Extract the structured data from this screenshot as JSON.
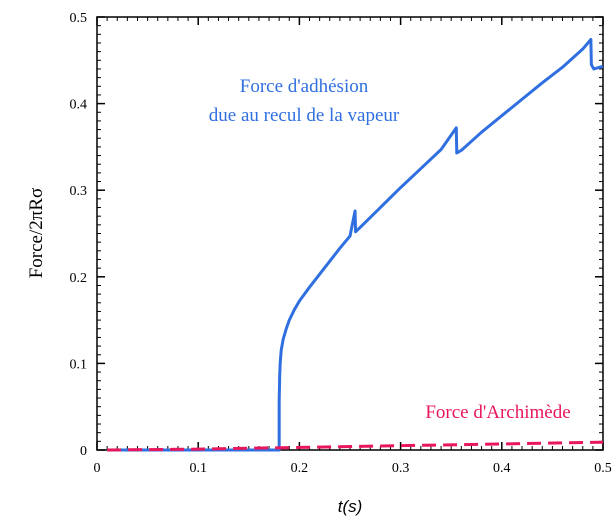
{
  "chart_data": {
    "type": "line",
    "xlabel": "t(s)",
    "ylabel": "Force/2πRσ",
    "xlim": [
      0,
      0.5
    ],
    "ylim": [
      0,
      0.5
    ],
    "xticks": [
      "0",
      "0.1",
      "0.2",
      "0.3",
      "0.4",
      "0.5"
    ],
    "yticks": [
      "0",
      "0.1",
      "0.2",
      "0.3",
      "0.4",
      "0.5"
    ],
    "grid": false,
    "series": [
      {
        "name": "",
        "color": "#2f6fe0",
        "style": "solid",
        "x": [
          0.01,
          0.18,
          0.18,
          0.1805,
          0.181,
          0.182,
          0.184,
          0.187,
          0.19,
          0.195,
          0.2,
          0.21,
          0.22,
          0.23,
          0.24,
          0.25,
          0.255,
          0.2555,
          0.26,
          0.28,
          0.3,
          0.32,
          0.34,
          0.355,
          0.3555,
          0.36,
          0.38,
          0.4,
          0.42,
          0.44,
          0.46,
          0.48,
          0.488,
          0.4885,
          0.491,
          0.5
        ],
        "y": [
          0,
          0,
          0.055,
          0.085,
          0.1,
          0.115,
          0.128,
          0.14,
          0.15,
          0.162,
          0.172,
          0.188,
          0.203,
          0.218,
          0.233,
          0.247,
          0.276,
          0.252,
          0.257,
          0.28,
          0.303,
          0.325,
          0.347,
          0.372,
          0.343,
          0.346,
          0.367,
          0.386,
          0.405,
          0.424,
          0.442,
          0.463,
          0.474,
          0.445,
          0.44,
          0.443
        ]
      },
      {
        "name": "",
        "color": "#e8175d",
        "style": "dashed",
        "x": [
          0.01,
          0.1,
          0.2,
          0.3,
          0.4,
          0.5
        ],
        "y": [
          0.0,
          0.001,
          0.003,
          0.005,
          0.007,
          0.009
        ]
      }
    ],
    "annotations": {
      "adhesion_line1": "Force d'adhésion",
      "adhesion_line2": "due au recul de la vapeur",
      "archimede": "Force d'Archimède"
    }
  }
}
